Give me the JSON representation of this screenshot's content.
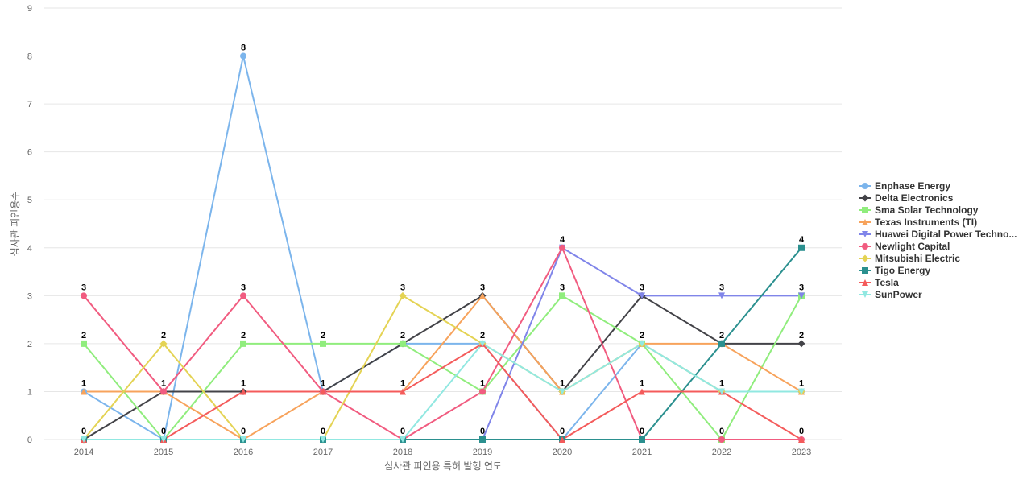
{
  "chart_data": {
    "type": "line",
    "title": "",
    "xlabel": "심사관 피인용 특허 발행 연도",
    "ylabel": "심사관 피인용수",
    "x": [
      "2014",
      "2015",
      "2016",
      "2017",
      "2018",
      "2019",
      "2020",
      "2021",
      "2022",
      "2023"
    ],
    "ylim": [
      0,
      9
    ],
    "yticks": [
      0,
      1,
      2,
      3,
      4,
      5,
      6,
      7,
      8,
      9
    ],
    "grid": true,
    "legend_position": "right",
    "series": [
      {
        "name": "Enphase Energy",
        "color": "#7cb5ec",
        "marker": "circle",
        "values": [
          1,
          0,
          8,
          1,
          2,
          2,
          0,
          2,
          1,
          1
        ]
      },
      {
        "name": "Delta Electronics",
        "color": "#434348",
        "marker": "diamond",
        "values": [
          0,
          1,
          1,
          1,
          2,
          3,
          1,
          3,
          2,
          2
        ]
      },
      {
        "name": "Sma Solar Technology",
        "color": "#90ed7d",
        "marker": "square",
        "values": [
          2,
          0,
          2,
          2,
          2,
          1,
          3,
          2,
          0,
          3
        ]
      },
      {
        "name": "Texas Instruments (TI)",
        "color": "#f7a35c",
        "marker": "triangle",
        "values": [
          1,
          1,
          0,
          1,
          1,
          3,
          1,
          2,
          2,
          1
        ]
      },
      {
        "name": "Huawei Digital Power Techno...",
        "color": "#8085e9",
        "marker": "triangle-down",
        "values": [
          0,
          0,
          0,
          0,
          0,
          0,
          4,
          3,
          3,
          3
        ]
      },
      {
        "name": "Newlight Capital",
        "color": "#f15c80",
        "marker": "circle",
        "values": [
          3,
          1,
          3,
          1,
          0,
          1,
          4,
          0,
          0,
          0
        ]
      },
      {
        "name": "Mitsubishi Electric",
        "color": "#e4d354",
        "marker": "diamond",
        "values": [
          0,
          2,
          0,
          0,
          3,
          2,
          1,
          2,
          1,
          1
        ]
      },
      {
        "name": "Tigo Energy",
        "color": "#2b908f",
        "marker": "square",
        "values": [
          0,
          0,
          0,
          0,
          0,
          0,
          0,
          0,
          2,
          4
        ]
      },
      {
        "name": "Tesla",
        "color": "#f45b5b",
        "marker": "triangle",
        "values": [
          0,
          0,
          1,
          1,
          1,
          2,
          0,
          1,
          1,
          0
        ]
      },
      {
        "name": "SunPower",
        "color": "#91e8e1",
        "marker": "triangle-down",
        "values": [
          0,
          0,
          0,
          0,
          0,
          2,
          1,
          2,
          1,
          1
        ]
      }
    ],
    "data_labels": [
      {
        "x": "2014",
        "values": [
          3,
          2,
          1,
          0
        ]
      },
      {
        "x": "2015",
        "values": [
          2,
          1,
          0
        ]
      },
      {
        "x": "2016",
        "values": [
          8,
          3,
          2,
          1,
          0
        ]
      },
      {
        "x": "2017",
        "values": [
          2,
          1,
          0
        ]
      },
      {
        "x": "2018",
        "values": [
          3,
          2,
          1,
          0
        ]
      },
      {
        "x": "2019",
        "values": [
          3,
          2,
          1,
          0
        ]
      },
      {
        "x": "2020",
        "values": [
          4,
          3,
          1,
          0
        ]
      },
      {
        "x": "2021",
        "values": [
          3,
          2,
          1,
          0
        ]
      },
      {
        "x": "2022",
        "values": [
          3,
          2,
          1,
          0
        ]
      },
      {
        "x": "2023",
        "values": [
          4,
          3,
          2,
          1,
          0
        ]
      }
    ]
  }
}
